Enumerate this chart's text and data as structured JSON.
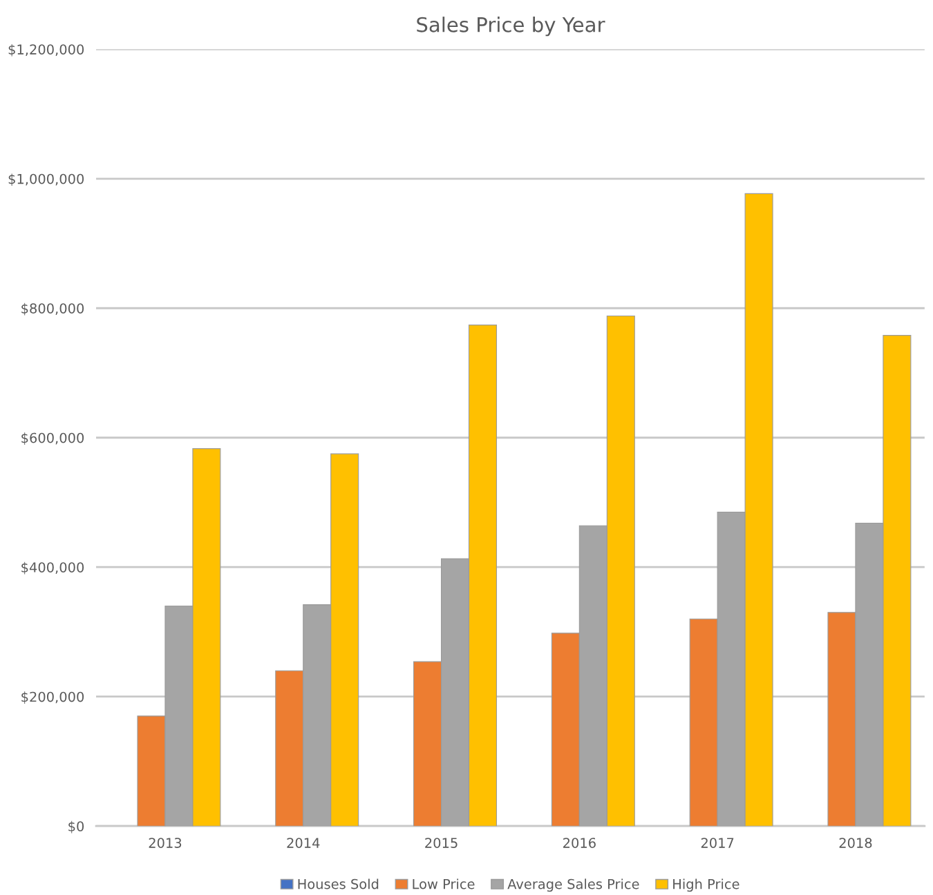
{
  "chart_data": {
    "type": "bar",
    "title": "Sales Price by Year",
    "categories": [
      "2013",
      "2014",
      "2015",
      "2016",
      "2017",
      "2018"
    ],
    "series": [
      {
        "name": "Houses Sold",
        "color": "#4472c4",
        "values": [
          null,
          null,
          null,
          null,
          null,
          null
        ]
      },
      {
        "name": "Low Price",
        "color": "#ed7d31",
        "values": [
          170000,
          240000,
          254000,
          298000,
          320000,
          330000
        ]
      },
      {
        "name": "Average Sales Price",
        "color": "#a5a5a5",
        "values": [
          340000,
          342000,
          413000,
          464000,
          485000,
          468000
        ]
      },
      {
        "name": "High Price",
        "color": "#ffc000",
        "values": [
          583000,
          575000,
          774000,
          788000,
          977000,
          758000
        ]
      }
    ],
    "ylim": [
      0,
      1200000
    ],
    "yticks": [
      {
        "value": 0,
        "label": "$0"
      },
      {
        "value": 200000,
        "label": "$200,000"
      },
      {
        "value": 400000,
        "label": "$400,000"
      },
      {
        "value": 600000,
        "label": "$600,000"
      },
      {
        "value": 800000,
        "label": "$800,000"
      },
      {
        "value": 1000000,
        "label": "$1,000,000"
      },
      {
        "value": 1200000,
        "label": "$1,200,000"
      }
    ],
    "grid": "y",
    "legend": "bottom"
  }
}
